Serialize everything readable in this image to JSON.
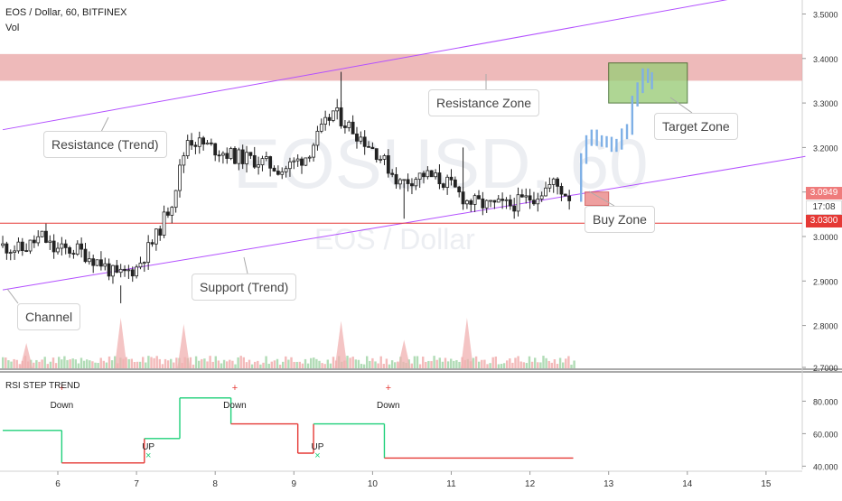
{
  "header": {
    "symbol_line": "EOS / Dollar, 60, BITFINEX",
    "volume_label": "Vol",
    "watermark_symbol": "EOSUSD, 60",
    "watermark_name": "EOS / Dollar"
  },
  "price_axis": {
    "ticks": [
      "3.5000",
      "3.4000",
      "3.3000",
      "3.2000",
      "3.1000",
      "3.0000",
      "2.9000",
      "2.8000",
      "2.7000"
    ],
    "current_price_tag": "3.0949",
    "countdown_tag": "17:08",
    "level_tag": "3.0300"
  },
  "time_axis": {
    "ticks": [
      "6",
      "7",
      "8",
      "9",
      "10",
      "11",
      "12",
      "13",
      "14",
      "15"
    ]
  },
  "annotations": {
    "resistance_zone": "Resistance Zone",
    "resistance_trend": "Resistance (Trend)",
    "support_trend": "Support (Trend)",
    "channel": "Channel",
    "target_zone": "Target Zone",
    "buy_zone": "Buy Zone"
  },
  "indicator": {
    "title": "RSI STEP TREND",
    "ticks": [
      "80.000",
      "60.000",
      "40.000"
    ],
    "labels": [
      "Down",
      "UP",
      "Down",
      "UP",
      "Down"
    ]
  },
  "colors": {
    "up_candle": "#222222",
    "resistance_zone_fill": "#e8a3a3",
    "target_zone_fill": "#9ccc7a",
    "buy_zone_fill": "#ec8f8f",
    "channel_line": "#b350ff",
    "level_line": "#e53935",
    "rsi_up": "#1fd07a",
    "rsi_down": "#e53935"
  },
  "chart_data": {
    "type": "candlestick",
    "title": "EOS / Dollar, 60, BITFINEX",
    "x_axis": [
      "6",
      "7",
      "8",
      "9",
      "10",
      "11",
      "12",
      "13",
      "14",
      "15"
    ],
    "ylim": [
      2.7,
      3.52
    ],
    "horizontal_levels": [
      3.03
    ],
    "zones": [
      {
        "name": "Resistance Zone",
        "y_range": [
          3.35,
          3.41
        ]
      },
      {
        "name": "Target Zone",
        "x_range": [
          13.0,
          14.0
        ],
        "y_range": [
          3.3,
          3.39
        ]
      },
      {
        "name": "Buy Zone",
        "x_range": [
          12.7,
          13.0
        ],
        "y_range": [
          3.07,
          3.1
        ]
      }
    ],
    "trendlines": [
      {
        "name": "Resistance (Trend)",
        "from": [
          5.3,
          3.24
        ],
        "to": [
          14.75,
          3.54
        ]
      },
      {
        "name": "Support (Trend)",
        "from": [
          5.3,
          2.88
        ],
        "to": [
          15.5,
          3.18
        ]
      }
    ],
    "price_path": [
      {
        "x": 5.3,
        "close": 2.98
      },
      {
        "x": 5.6,
        "close": 2.97
      },
      {
        "x": 5.85,
        "close": 3.0
      },
      {
        "x": 6.0,
        "close": 2.97
      },
      {
        "x": 6.3,
        "close": 2.97
      },
      {
        "x": 6.6,
        "close": 2.94
      },
      {
        "x": 6.8,
        "close": 2.91
      },
      {
        "x": 7.05,
        "close": 2.93
      },
      {
        "x": 7.3,
        "close": 3.0
      },
      {
        "x": 7.5,
        "close": 3.08
      },
      {
        "x": 7.7,
        "close": 3.22
      },
      {
        "x": 8.0,
        "close": 3.2
      },
      {
        "x": 8.3,
        "close": 3.18
      },
      {
        "x": 8.6,
        "close": 3.17
      },
      {
        "x": 8.9,
        "close": 3.15
      },
      {
        "x": 9.2,
        "close": 3.18
      },
      {
        "x": 9.55,
        "close": 3.28
      },
      {
        "x": 9.8,
        "close": 3.24
      },
      {
        "x": 10.1,
        "close": 3.19
      },
      {
        "x": 10.4,
        "close": 3.12
      },
      {
        "x": 10.7,
        "close": 3.14
      },
      {
        "x": 11.0,
        "close": 3.12
      },
      {
        "x": 11.25,
        "close": 3.08
      },
      {
        "x": 11.5,
        "close": 3.07
      },
      {
        "x": 11.8,
        "close": 3.07
      },
      {
        "x": 12.1,
        "close": 3.09
      },
      {
        "x": 12.35,
        "close": 3.12
      },
      {
        "x": 12.55,
        "close": 3.09
      }
    ],
    "projection": [
      {
        "x": 12.65,
        "close": 3.15
      },
      {
        "x": 12.85,
        "close": 3.24
      },
      {
        "x": 13.1,
        "close": 3.19
      },
      {
        "x": 13.3,
        "close": 3.25
      },
      {
        "x": 13.5,
        "close": 3.37
      },
      {
        "x": 13.6,
        "close": 3.34
      }
    ],
    "volume_ylim": [
      0,
      1
    ],
    "volume_spikes": [
      {
        "x": 5.6,
        "value": 0.4
      },
      {
        "x": 6.8,
        "value": 0.8
      },
      {
        "x": 7.6,
        "value": 0.7
      },
      {
        "x": 9.6,
        "value": 0.75
      },
      {
        "x": 10.4,
        "value": 0.45
      },
      {
        "x": 11.2,
        "value": 0.8
      }
    ],
    "rsi_step_trend": {
      "ylim": [
        38,
        88
      ],
      "segments": [
        {
          "x": [
            5.3,
            6.05
          ],
          "value": 62,
          "trend": "up"
        },
        {
          "x": [
            6.05,
            7.1
          ],
          "value": 42,
          "trend": "down"
        },
        {
          "x": [
            7.1,
            7.55
          ],
          "value": 57,
          "trend": "up"
        },
        {
          "x": [
            7.55,
            8.2
          ],
          "value": 82,
          "trend": "up"
        },
        {
          "x": [
            8.2,
            9.05
          ],
          "value": 66,
          "trend": "down"
        },
        {
          "x": [
            9.05,
            9.25
          ],
          "value": 48,
          "trend": "down"
        },
        {
          "x": [
            9.25,
            10.15
          ],
          "value": 66,
          "trend": "up"
        },
        {
          "x": [
            10.15,
            12.55
          ],
          "value": 45,
          "trend": "down"
        }
      ]
    }
  }
}
